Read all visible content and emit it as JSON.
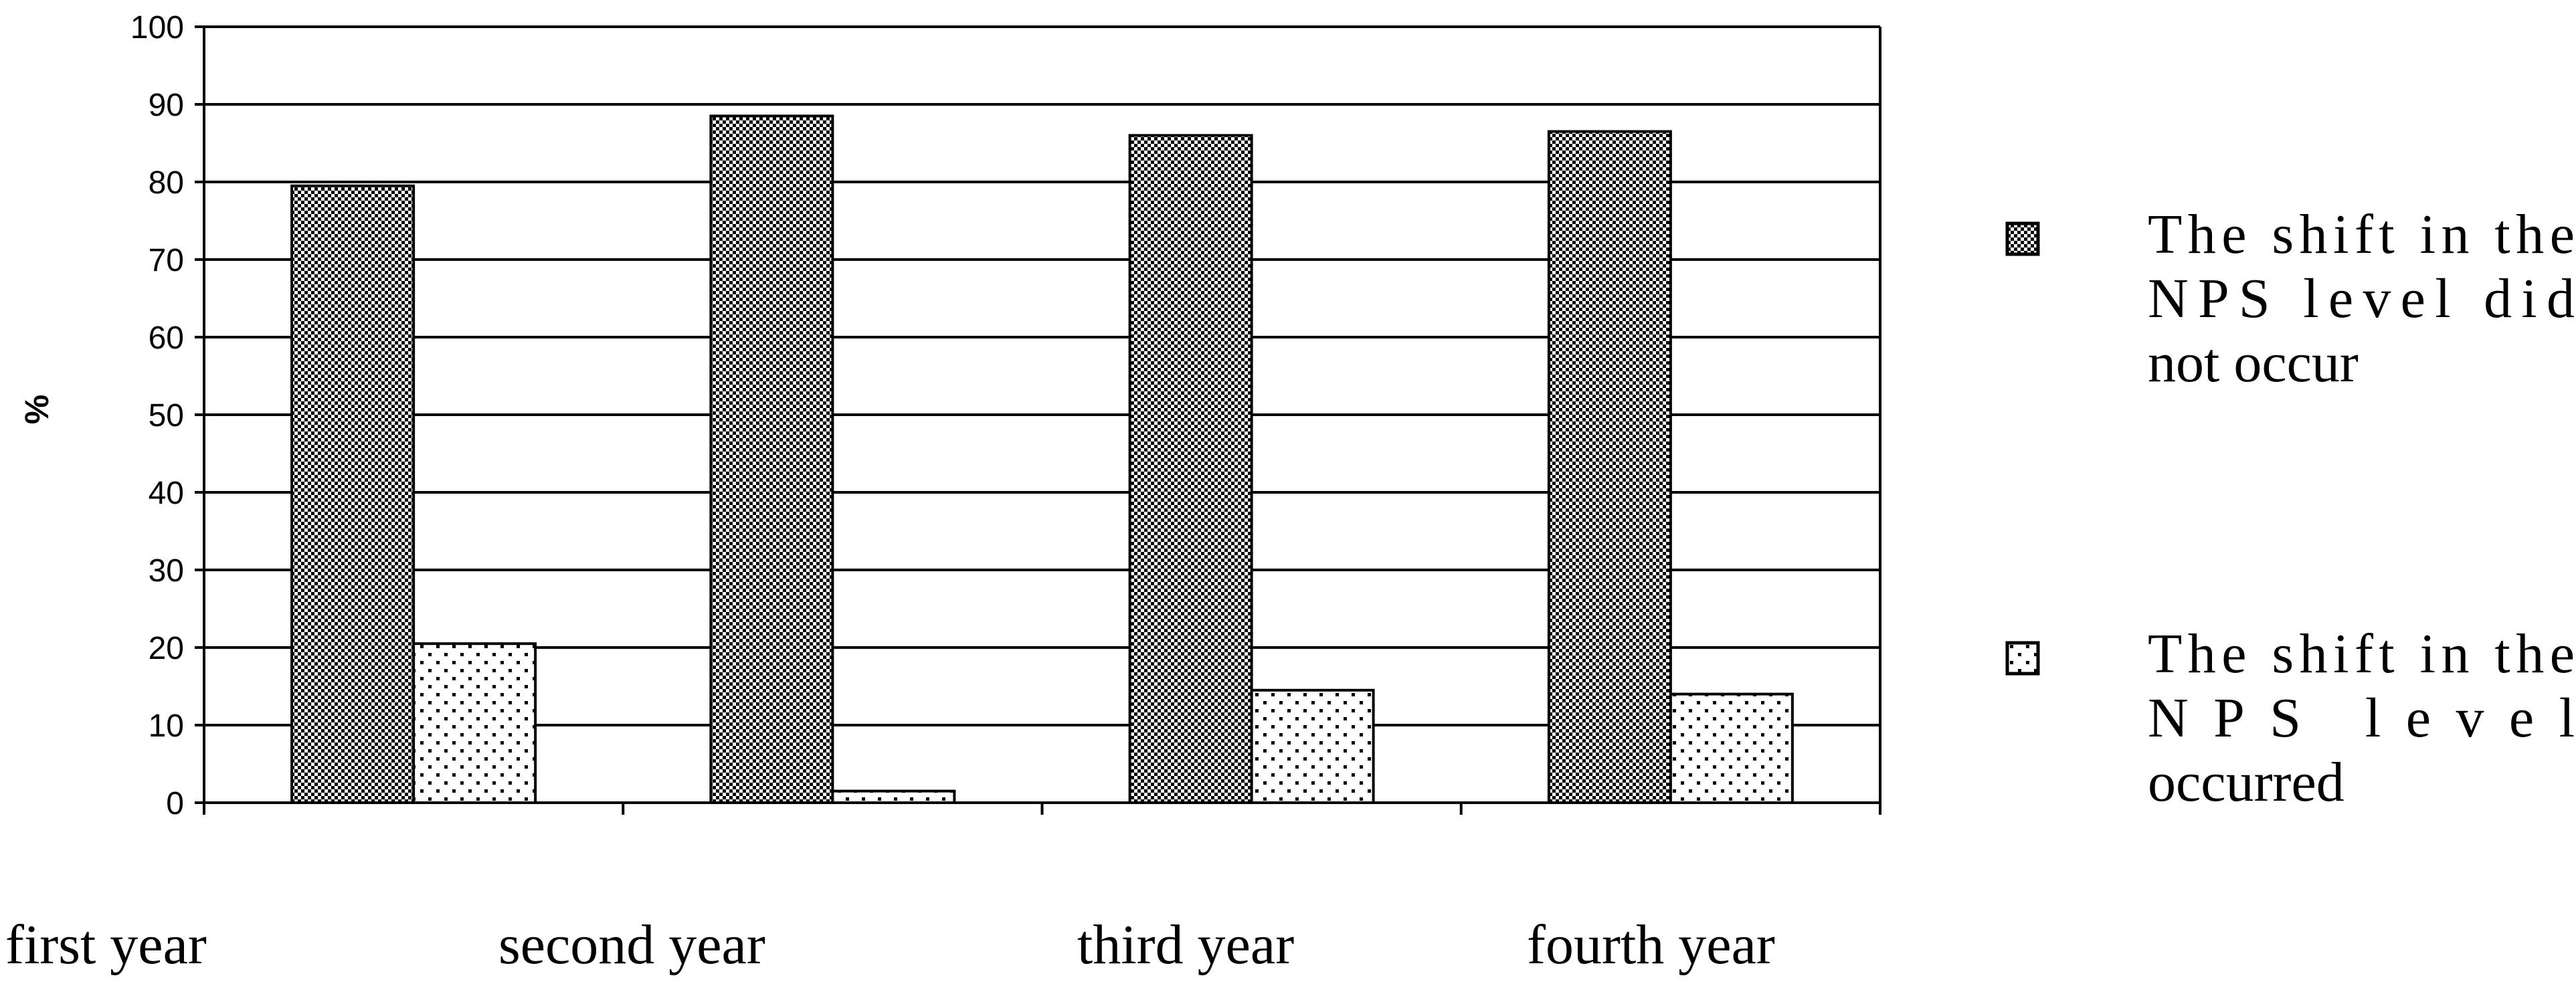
{
  "chart_data": {
    "type": "bar",
    "categories": [
      "first year",
      "second year",
      "third year",
      "fourth year"
    ],
    "series": [
      {
        "name": "The shift in the NPS level did not occur",
        "values": [
          79.5,
          88.5,
          86,
          86.5
        ],
        "pattern": "checker"
      },
      {
        "name": "The shift in the NPS level occurred",
        "values": [
          20.5,
          1.5,
          14.5,
          14
        ],
        "pattern": "dots"
      }
    ],
    "ylabel": "%",
    "xlabel": "",
    "ylim": [
      0,
      100
    ],
    "yticks": [
      0,
      10,
      20,
      30,
      40,
      50,
      60,
      70,
      80,
      90,
      100
    ],
    "grid": true,
    "legend": {
      "position": "right",
      "entries": [
        [
          "The shift in the",
          "NPS level did",
          "not occur"
        ],
        [
          "The shift in the",
          "NPS level",
          "occurred"
        ]
      ]
    }
  }
}
